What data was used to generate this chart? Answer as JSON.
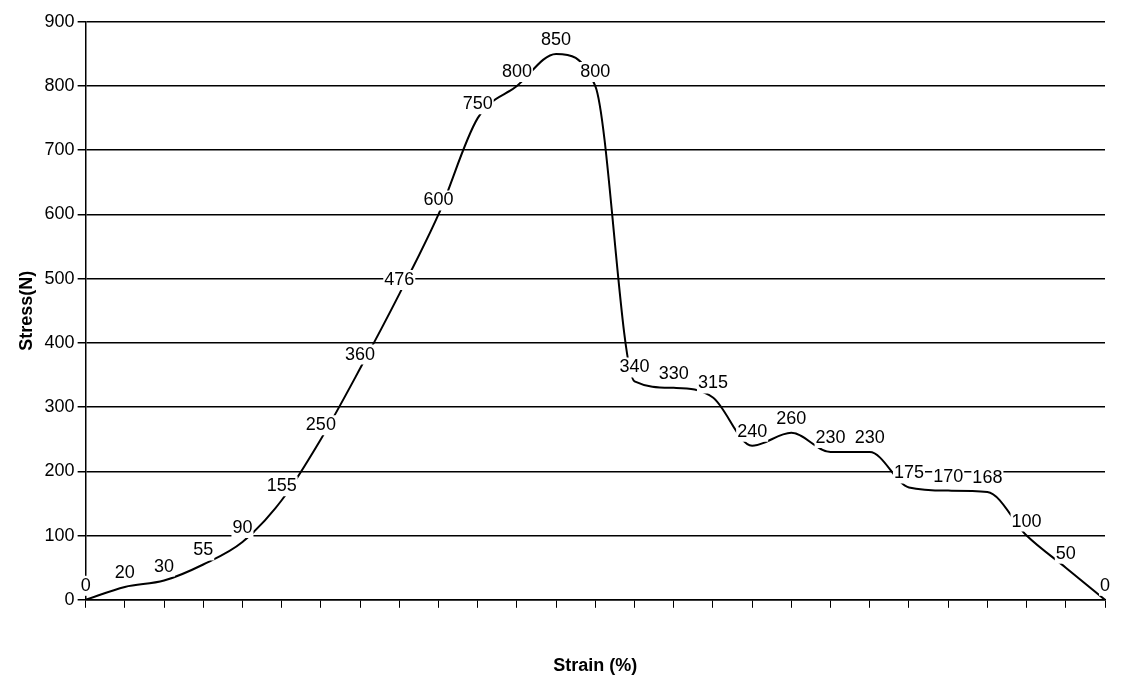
{
  "chart_data": {
    "type": "line",
    "xlabel": "Strain (%)",
    "ylabel": "Stress(N)",
    "categories": [
      null,
      null,
      null,
      null,
      null,
      null,
      null,
      null,
      null,
      null,
      null,
      null,
      null,
      null,
      null,
      null,
      null,
      null,
      null,
      null,
      null,
      null,
      null,
      null,
      null,
      null,
      null
    ],
    "series": [
      {
        "color": "#000000",
        "values": [
          0,
          20,
          30,
          55,
          90,
          155,
          250,
          360,
          476,
          600,
          750,
          800,
          850,
          800,
          340,
          330,
          315,
          240,
          260,
          230,
          230,
          175,
          170,
          168,
          100,
          50,
          0
        ]
      }
    ],
    "ylim": [
      0,
      900
    ],
    "yticks": [
      0,
      100,
      200,
      300,
      400,
      500,
      600,
      700,
      800,
      900
    ],
    "grid": "y",
    "legend": false,
    "marker": "none",
    "line_style": "solid",
    "data_labels": true
  }
}
